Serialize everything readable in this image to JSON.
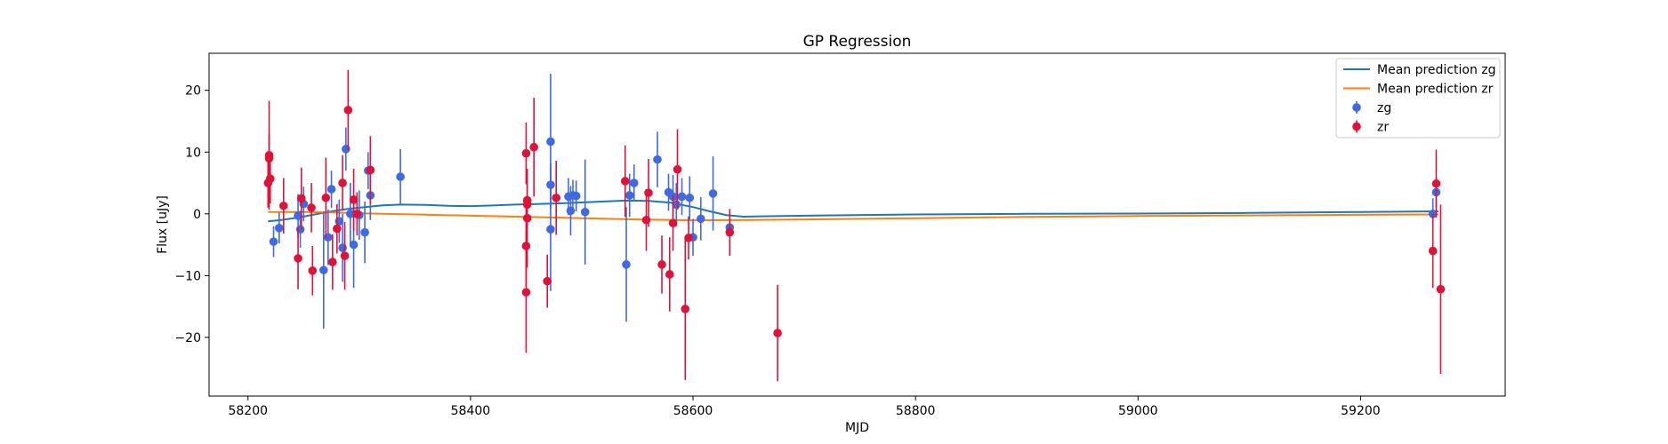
{
  "chart_data": {
    "type": "scatter",
    "title": "GP Regression",
    "xlabel": "MJD",
    "ylabel": "Flux [uJy]",
    "xlim": [
      58165,
      59330
    ],
    "ylim": [
      -29.5,
      26
    ],
    "xticks": [
      58200,
      58400,
      58600,
      58800,
      59000,
      59200
    ],
    "yticks": [
      -20,
      -10,
      0,
      10,
      20
    ],
    "grid": false,
    "legend_position": "top-right",
    "lines": [
      {
        "name": "Mean prediction zg",
        "color": "#1f77b4",
        "x": [
          58218,
          58230,
          58245,
          58260,
          58275,
          58290,
          58305,
          58320,
          58337,
          58360,
          58380,
          58400,
          58420,
          58440,
          58460,
          58480,
          58500,
          58520,
          58540,
          58560,
          58580,
          58600,
          58615,
          58630,
          58645,
          58660,
          58700,
          58800,
          58900,
          59000,
          59100,
          59200,
          59270
        ],
        "y": [
          -1.2,
          -1.0,
          -0.6,
          -0.1,
          0.4,
          0.8,
          1.1,
          1.35,
          1.5,
          1.45,
          1.3,
          1.25,
          1.35,
          1.5,
          1.6,
          1.7,
          1.85,
          2.0,
          2.15,
          2.1,
          1.8,
          1.1,
          0.4,
          -0.2,
          -0.45,
          -0.4,
          -0.3,
          -0.1,
          0.0,
          0.05,
          0.15,
          0.3,
          0.4
        ]
      },
      {
        "name": "Mean prediction zr",
        "color": "#ff7f0e",
        "x": [
          58218,
          58250,
          58280,
          58300,
          58320,
          58350,
          58400,
          58450,
          58500,
          58550,
          58600,
          58650,
          58700,
          58800,
          58900,
          59000,
          59100,
          59200,
          59270
        ],
        "y": [
          0.3,
          0.3,
          0.2,
          0.1,
          0.0,
          -0.1,
          -0.3,
          -0.5,
          -0.7,
          -0.9,
          -1.05,
          -1.0,
          -0.9,
          -0.7,
          -0.5,
          -0.35,
          -0.25,
          -0.15,
          -0.1
        ]
      }
    ],
    "series": [
      {
        "name": "zg",
        "color": "#4169e1",
        "points": [
          {
            "x": 58223,
            "y": -4.5,
            "err": 2.5
          },
          {
            "x": 58228,
            "y": -2.3,
            "err": 2.5
          },
          {
            "x": 58245,
            "y": -0.3,
            "err": 3.5
          },
          {
            "x": 58247,
            "y": -2.5,
            "err": 3.0
          },
          {
            "x": 58250,
            "y": 1.6,
            "err": 2.8
          },
          {
            "x": 58268,
            "y": -9.1,
            "err": 9.5
          },
          {
            "x": 58272,
            "y": -3.8,
            "err": 4.5
          },
          {
            "x": 58275,
            "y": 4.0,
            "err": 3.0
          },
          {
            "x": 58282,
            "y": -1.2,
            "err": 3.5
          },
          {
            "x": 58285,
            "y": -5.5,
            "err": 5.5
          },
          {
            "x": 58288,
            "y": 10.5,
            "err": 3.5
          },
          {
            "x": 58292,
            "y": 0.0,
            "err": 5.0
          },
          {
            "x": 58295,
            "y": -5.0,
            "err": 7.0
          },
          {
            "x": 58300,
            "y": -0.2,
            "err": 4.0
          },
          {
            "x": 58305,
            "y": -3.0,
            "err": 5.0
          },
          {
            "x": 58308,
            "y": 7.0,
            "err": 3.0
          },
          {
            "x": 58310,
            "y": 3.0,
            "err": 4.0
          },
          {
            "x": 58337,
            "y": 6.0,
            "err": 4.5
          },
          {
            "x": 58472,
            "y": 11.7,
            "err": 11.0
          },
          {
            "x": 58472,
            "y": 4.7,
            "err": 3.5
          },
          {
            "x": 58472,
            "y": -2.5,
            "err": 10.0
          },
          {
            "x": 58488,
            "y": 2.8,
            "err": 3.0
          },
          {
            "x": 58490,
            "y": 0.5,
            "err": 4.0
          },
          {
            "x": 58492,
            "y": 3.0,
            "err": 2.5
          },
          {
            "x": 58495,
            "y": 2.9,
            "err": 2.5
          },
          {
            "x": 58503,
            "y": 0.3,
            "err": 8.5
          },
          {
            "x": 58540,
            "y": -8.2,
            "err": 9.3
          },
          {
            "x": 58543,
            "y": 3.0,
            "err": 3.5
          },
          {
            "x": 58547,
            "y": 5.0,
            "err": 3.0
          },
          {
            "x": 58568,
            "y": 8.8,
            "err": 4.5
          },
          {
            "x": 58578,
            "y": 3.5,
            "err": 3.0
          },
          {
            "x": 58582,
            "y": 2.8,
            "err": 3.5
          },
          {
            "x": 58585,
            "y": 1.5,
            "err": 3.5
          },
          {
            "x": 58590,
            "y": 2.8,
            "err": 3.0
          },
          {
            "x": 58597,
            "y": 2.6,
            "err": 3.5
          },
          {
            "x": 58600,
            "y": -3.8,
            "err": 3.0
          },
          {
            "x": 58607,
            "y": -0.8,
            "err": 3.5
          },
          {
            "x": 58618,
            "y": 3.3,
            "err": 6.0
          },
          {
            "x": 58633,
            "y": -2.2,
            "err": 2.5
          },
          {
            "x": 59265,
            "y": 0.0,
            "err": 2.5
          },
          {
            "x": 59268,
            "y": 3.5,
            "err": 2.5
          }
        ]
      },
      {
        "name": "zr",
        "color": "#dc143c",
        "points": [
          {
            "x": 58218,
            "y": 5.0,
            "err": 4.0
          },
          {
            "x": 58219,
            "y": 9.5,
            "err": 8.8
          },
          {
            "x": 58219,
            "y": 9.0,
            "err": 4.0
          },
          {
            "x": 58220,
            "y": 5.7,
            "err": 4.0
          },
          {
            "x": 58232,
            "y": 1.3,
            "err": 4.5
          },
          {
            "x": 58245,
            "y": -7.2,
            "err": 5.0
          },
          {
            "x": 58248,
            "y": 2.5,
            "err": 5.0
          },
          {
            "x": 58257,
            "y": 1.0,
            "err": 4.0
          },
          {
            "x": 58258,
            "y": -9.2,
            "err": 4.0
          },
          {
            "x": 58270,
            "y": 2.6,
            "err": 6.5
          },
          {
            "x": 58276,
            "y": -7.8,
            "err": 4.5
          },
          {
            "x": 58280,
            "y": -2.4,
            "err": 4.0
          },
          {
            "x": 58285,
            "y": 5.0,
            "err": 4.5
          },
          {
            "x": 58287,
            "y": -6.8,
            "err": 5.5
          },
          {
            "x": 58290,
            "y": 16.8,
            "err": 6.5
          },
          {
            "x": 58295,
            "y": 2.3,
            "err": 5.0
          },
          {
            "x": 58298,
            "y": 0.0,
            "err": 3.5
          },
          {
            "x": 58310,
            "y": 7.1,
            "err": 5.5
          },
          {
            "x": 58450,
            "y": -12.7,
            "err": 9.8
          },
          {
            "x": 58450,
            "y": 9.8,
            "err": 5.0
          },
          {
            "x": 58450,
            "y": -5.2,
            "err": 6.5
          },
          {
            "x": 58451,
            "y": 2.2,
            "err": 5.0
          },
          {
            "x": 58451,
            "y": 1.5,
            "err": 5.0
          },
          {
            "x": 58451,
            "y": -0.7,
            "err": 8.0
          },
          {
            "x": 58457,
            "y": 10.8,
            "err": 8.0
          },
          {
            "x": 58469,
            "y": -10.9,
            "err": 4.3
          },
          {
            "x": 58477,
            "y": 2.6,
            "err": 6.0
          },
          {
            "x": 58539,
            "y": 5.3,
            "err": 5.8
          },
          {
            "x": 58558,
            "y": -1.0,
            "err": 5.0
          },
          {
            "x": 58560,
            "y": 3.4,
            "err": 5.5
          },
          {
            "x": 58572,
            "y": -8.2,
            "err": 4.7
          },
          {
            "x": 58579,
            "y": -9.8,
            "err": 6.0
          },
          {
            "x": 58582,
            "y": -1.5,
            "err": 4.5
          },
          {
            "x": 58586,
            "y": 7.2,
            "err": 6.5
          },
          {
            "x": 58593,
            "y": -15.4,
            "err": 11.5
          },
          {
            "x": 58596,
            "y": -3.9,
            "err": 3.5
          },
          {
            "x": 58633,
            "y": -3.0,
            "err": 3.8
          },
          {
            "x": 58676,
            "y": -19.3,
            "err": 7.8
          },
          {
            "x": 59265,
            "y": -6.0,
            "err": 6.0
          },
          {
            "x": 59268,
            "y": 4.9,
            "err": 5.5
          },
          {
            "x": 59272,
            "y": -12.2,
            "err": 13.7
          }
        ]
      }
    ]
  }
}
